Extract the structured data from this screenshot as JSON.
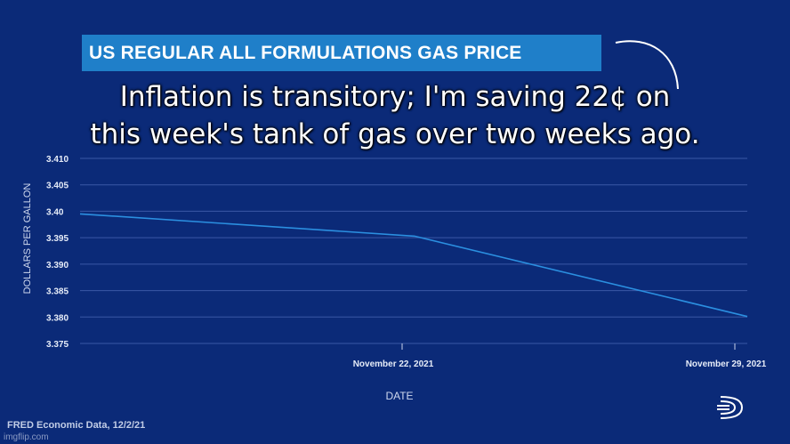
{
  "title": "US REGULAR ALL FORMULATIONS GAS PRICE",
  "caption_lines": [
    "Inflation is transitory; I'm saving 22¢ on",
    "this week's tank of gas over two weeks ago."
  ],
  "footer": "FRED Economic Data, 12/2/21",
  "watermark": "imgflip.com",
  "colors": {
    "background": "#0b2a78",
    "title_bar": "#1f7fc9",
    "line": "#2b8fe0",
    "grid": "#3a58a6"
  },
  "icons": [
    "curved-arrow-icon",
    "fred-logo-icon"
  ],
  "chart_data": {
    "type": "line",
    "xlabel": "DATE",
    "ylabel": "DOLLARS PER GALLON",
    "ylim": [
      3.375,
      3.41
    ],
    "yticks": [
      "3.410",
      "3.405",
      "3.40",
      "3.395",
      "3.390",
      "3.385",
      "3.380",
      "3.375"
    ],
    "xticks": [
      "November 22, 2021",
      "November 29, 2021"
    ],
    "x": [
      "November 15, 2021",
      "November 22, 2021",
      "November 29, 2021"
    ],
    "values": [
      3.3995,
      3.3953,
      3.3801
    ],
    "grid": true
  }
}
